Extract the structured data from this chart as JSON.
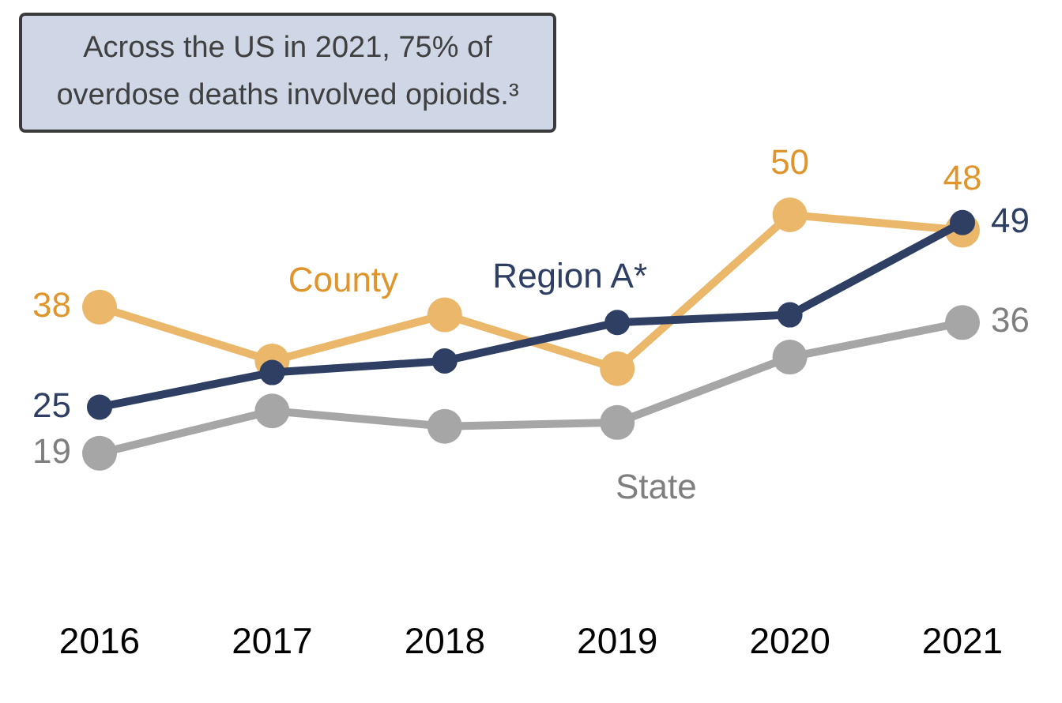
{
  "chart_data": {
    "type": "line",
    "categories": [
      "2016",
      "2017",
      "2018",
      "2019",
      "2020",
      "2021"
    ],
    "series": [
      {
        "name": "County",
        "color": "#ebb86b",
        "values": [
          38,
          31,
          37,
          30,
          50,
          48
        ],
        "value_labels": [
          "38",
          null,
          null,
          null,
          "50",
          "48"
        ]
      },
      {
        "name": "Region A*",
        "color": "#2f3f64",
        "values": [
          25,
          29.5,
          31,
          36,
          37,
          49
        ],
        "value_labels": [
          "25",
          null,
          null,
          null,
          null,
          "49"
        ]
      },
      {
        "name": "State",
        "color": "#a6a6a6",
        "values": [
          19,
          24.5,
          22.5,
          23,
          31.5,
          36
        ],
        "value_labels": [
          "19",
          null,
          null,
          null,
          null,
          "36"
        ]
      }
    ],
    "grid": false,
    "legend": false,
    "tick_labels": "x",
    "marker": "circle",
    "line_style": "solid",
    "annotations": [
      "Across the US in 2021, 75% of overdose deaths involved opioids.³"
    ]
  }
}
